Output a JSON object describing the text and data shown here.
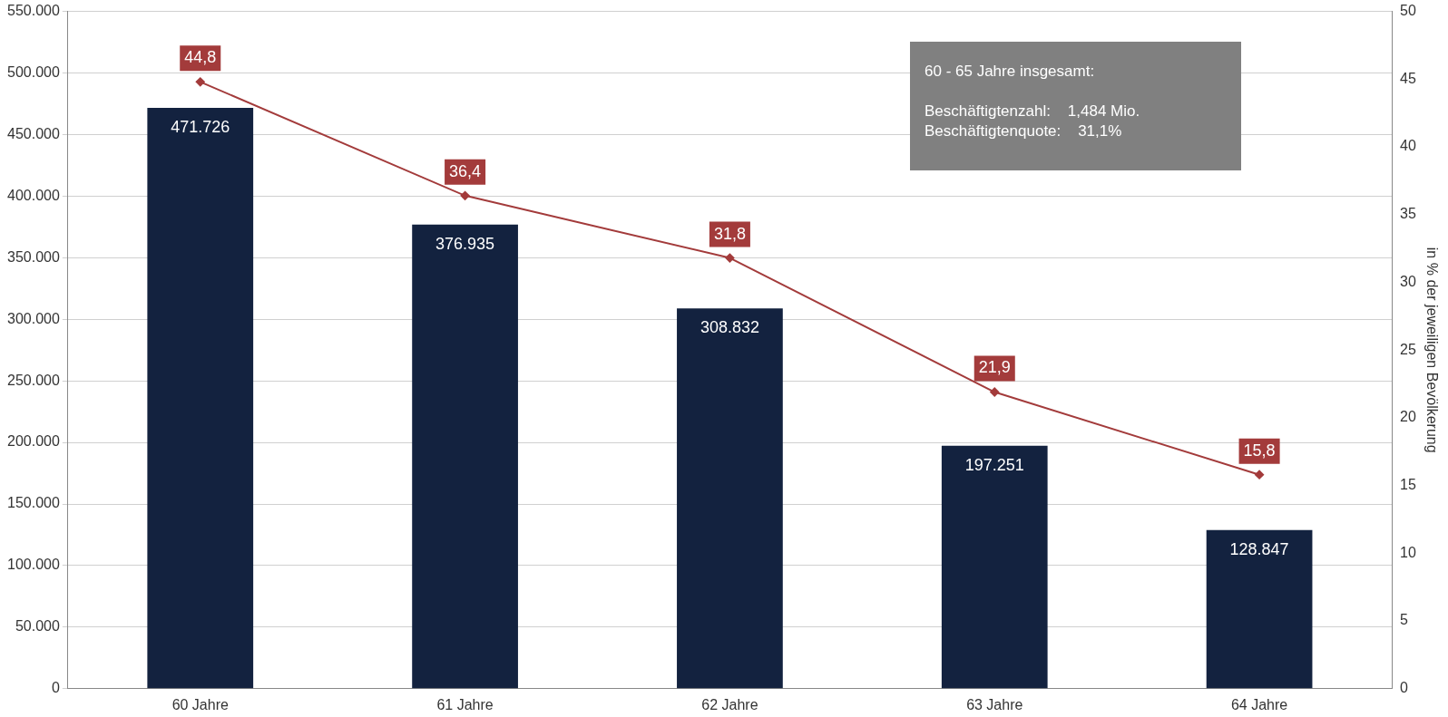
{
  "chart_data": {
    "type": "bar",
    "categories": [
      "60 Jahre",
      "61 Jahre",
      "62 Jahre",
      "63 Jahre",
      "64 Jahre"
    ],
    "series": [
      {
        "color": "#13223f",
        "values": [
          471726,
          376935,
          308832,
          197251,
          128847
        ],
        "value_labels": [
          "471.726",
          "376.935",
          "308.832",
          "197.251",
          "128.847"
        ]
      },
      {
        "type": "line",
        "axis": "y2",
        "color": "#a33b3b",
        "marker": "diamond",
        "values": [
          44.8,
          36.4,
          31.8,
          21.9,
          15.8
        ],
        "value_labels": [
          "44,8",
          "36,4",
          "31,8",
          "21,9",
          "15,8"
        ]
      }
    ],
    "ylim": [
      0,
      550000
    ],
    "yticks": [
      0,
      {
        "value": 50000,
        "label": "50.000"
      },
      {
        "value": 100000,
        "label": "100.000"
      },
      {
        "value": 150000,
        "label": "150.000"
      },
      {
        "value": 200000,
        "label": "200.000"
      },
      {
        "value": 250000,
        "label": "250.000"
      },
      {
        "value": 300000,
        "label": "300.000"
      },
      {
        "value": 350000,
        "label": "350.000"
      },
      {
        "value": 400000,
        "label": "400.000"
      },
      {
        "value": 450000,
        "label": "450.000"
      },
      {
        "value": 500000,
        "label": "500.000"
      },
      {
        "value": 550000,
        "label": "550.000"
      }
    ],
    "y2lim": [
      0,
      50
    ],
    "y2ticks": [
      0,
      5,
      10,
      15,
      20,
      25,
      30,
      35,
      40,
      45,
      50
    ],
    "y2label": "in % der jeweiligen Bevölkerung",
    "grid": "y",
    "legend": false,
    "annotations": [
      "60 - 65 Jahre insgesamt:",
      "Beschäftigtenzahl:    1,484 Mio.",
      "Beschäftigtenquote:    31,1%"
    ]
  }
}
